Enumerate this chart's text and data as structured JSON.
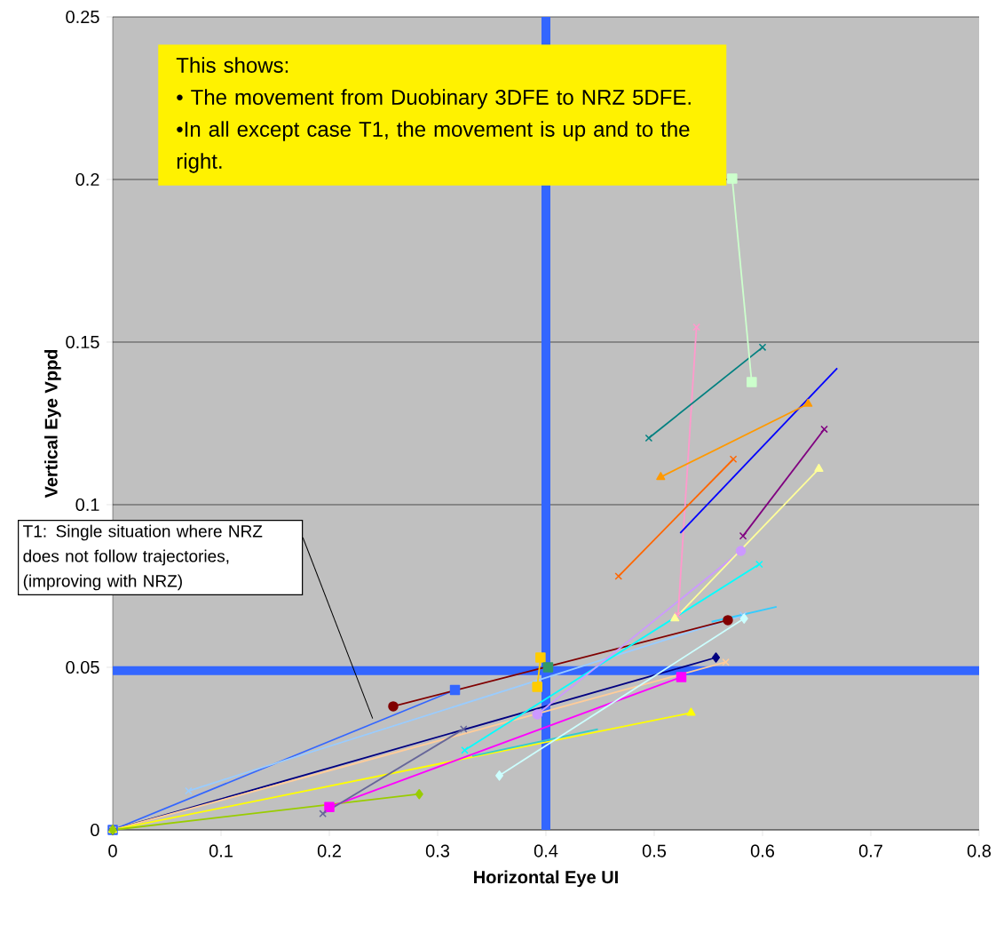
{
  "chart_data": {
    "type": "line",
    "xlabel": "Horizontal Eye UI",
    "ylabel": "Vertical Eye  Vppd",
    "xlim": [
      0,
      0.8
    ],
    "xticks": [
      0,
      0.1,
      0.2,
      0.3,
      0.4,
      0.5,
      0.6,
      0.7,
      0.8
    ],
    "ylim": [
      0,
      0.25
    ],
    "yticks": [
      0,
      0.05,
      0.1,
      0.15,
      0.2,
      0.25
    ],
    "grid": "y",
    "ref_lines": [
      {
        "axis": "x",
        "value": 0.4,
        "color": "#3366ff"
      },
      {
        "axis": "y",
        "value": 0.049,
        "color": "#3366ff"
      }
    ],
    "annotations": [
      "This shows:",
      "• The movement from Duobinary 3DFE to NRZ 5DFE.",
      "•In all except case T1, the movement is up and to the right.",
      "T1: Single situation where NRZ does not follow trajectories, (improving with NRZ)"
    ],
    "series": [
      {
        "color": "#3366ff",
        "marker": "square",
        "x": [
          0,
          0.316
        ],
        "values": [
          0,
          0.043
        ]
      },
      {
        "color": "#000080",
        "marker": "diamond",
        "x": [
          0,
          0.557
        ],
        "values": [
          0,
          0.053
        ]
      },
      {
        "color": "#ffcc99",
        "marker": "cross",
        "x": [
          0,
          0.566
        ],
        "values": [
          0,
          0.0516
        ]
      },
      {
        "color": "#ffff00",
        "marker": "triangle",
        "x": [
          0,
          0.534
        ],
        "values": [
          0,
          0.036
        ]
      },
      {
        "color": "#99cc00",
        "marker": "diamond",
        "x": [
          0,
          0.283
        ],
        "values": [
          0,
          0.011
        ]
      },
      {
        "color": "#99ccff",
        "marker": "cross",
        "x": [
          0.07,
          0.582
        ],
        "values": [
          0.012,
          0.066
        ]
      },
      {
        "color": "#800000",
        "marker": "circle",
        "x": [
          0.259,
          0.568
        ],
        "values": [
          0.038,
          0.0645
        ]
      },
      {
        "color": "#ff00ff",
        "marker": "square",
        "x": [
          0.2,
          0.525
        ],
        "values": [
          0.007,
          0.047
        ]
      },
      {
        "color": "#666699",
        "marker": "cross",
        "x": [
          0.194,
          0.324
        ],
        "values": [
          0.005,
          0.031
        ]
      },
      {
        "color": "#00ffff",
        "marker": "cross",
        "x": [
          0.325,
          0.597
        ],
        "values": [
          0.0245,
          0.0817
        ]
      },
      {
        "color": "#33cccc",
        "marker": "none",
        "x": [
          0.332,
          0.448
        ],
        "values": [
          0.0227,
          0.031
        ]
      },
      {
        "color": "#ccffff",
        "marker": "diamond",
        "x": [
          0.357,
          0.583
        ],
        "values": [
          0.0167,
          0.065
        ]
      },
      {
        "color": "#33ccff",
        "marker": "none",
        "x": [
          0.553,
          0.613
        ],
        "values": [
          0.064,
          0.0686
        ]
      },
      {
        "color": "#ffcc00",
        "marker": "square",
        "x": [
          0.392,
          0.395
        ],
        "values": [
          0.044,
          0.053
        ]
      },
      {
        "color": "#339966",
        "marker": "square",
        "x": [
          0.402
        ],
        "values": [
          0.05
        ]
      },
      {
        "color": "#cc99ff",
        "marker": "circle",
        "x": [
          0.392,
          0.58
        ],
        "values": [
          0.0355,
          0.0858
        ]
      },
      {
        "color": "#ff99cc",
        "marker": "cross",
        "x": [
          0.522,
          0.539
        ],
        "values": [
          0.066,
          0.1546
        ]
      },
      {
        "color": "#ffff99",
        "marker": "triangle",
        "x": [
          0.519,
          0.652
        ],
        "values": [
          0.065,
          0.111
        ]
      },
      {
        "color": "#800080",
        "marker": "cross",
        "x": [
          0.582,
          0.657
        ],
        "values": [
          0.0904,
          0.1232
        ]
      },
      {
        "color": "#0000ff",
        "marker": "none",
        "x": [
          0.524,
          0.669
        ],
        "values": [
          0.0913,
          0.142
        ]
      },
      {
        "color": "#ff6600",
        "marker": "cross",
        "x": [
          0.467,
          0.573
        ],
        "values": [
          0.078,
          0.114
        ]
      },
      {
        "color": "#ff9900",
        "marker": "triangle",
        "x": [
          0.506,
          0.642
        ],
        "values": [
          0.1085,
          0.131
        ]
      },
      {
        "color": "#008080",
        "marker": "cross",
        "x": [
          0.495,
          0.6
        ],
        "values": [
          0.1205,
          0.1484
        ]
      },
      {
        "color": "#ccffcc",
        "marker": "square",
        "x": [
          0.572,
          0.59
        ],
        "values": [
          0.2003,
          0.1377
        ]
      }
    ]
  }
}
